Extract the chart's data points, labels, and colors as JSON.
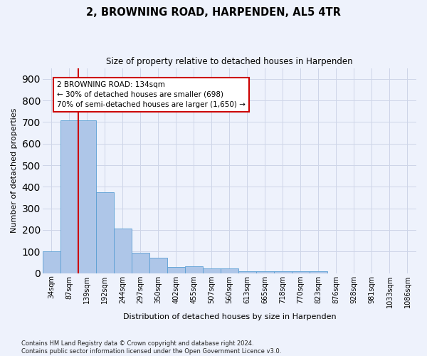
{
  "title": "2, BROWNING ROAD, HARPENDEN, AL5 4TR",
  "subtitle": "Size of property relative to detached houses in Harpenden",
  "xlabel": "Distribution of detached houses by size in Harpenden",
  "ylabel": "Number of detached properties",
  "bar_labels": [
    "34sqm",
    "87sqm",
    "139sqm",
    "192sqm",
    "244sqm",
    "297sqm",
    "350sqm",
    "402sqm",
    "455sqm",
    "507sqm",
    "560sqm",
    "613sqm",
    "665sqm",
    "718sqm",
    "770sqm",
    "823sqm",
    "876sqm",
    "928sqm",
    "981sqm",
    "1033sqm",
    "1086sqm"
  ],
  "bar_values": [
    100,
    707,
    707,
    375,
    207,
    95,
    72,
    30,
    32,
    22,
    22,
    10,
    8,
    8,
    8,
    10,
    0,
    0,
    0,
    0,
    0
  ],
  "bar_color": "#aec6e8",
  "bar_edge_color": "#5a9fd4",
  "vline_x": 2.5,
  "annotation_text": "2 BROWNING ROAD: 134sqm\n← 30% of detached houses are smaller (698)\n70% of semi-detached houses are larger (1,650) →",
  "annotation_box_color": "#ffffff",
  "annotation_box_edge_color": "#cc0000",
  "vline_color": "#cc0000",
  "grid_color": "#cdd5e8",
  "background_color": "#eef2fc",
  "footer_text": "Contains HM Land Registry data © Crown copyright and database right 2024.\nContains public sector information licensed under the Open Government Licence v3.0.",
  "ylim": [
    0,
    950
  ],
  "yticks": [
    0,
    100,
    200,
    300,
    400,
    500,
    600,
    700,
    800,
    900
  ]
}
